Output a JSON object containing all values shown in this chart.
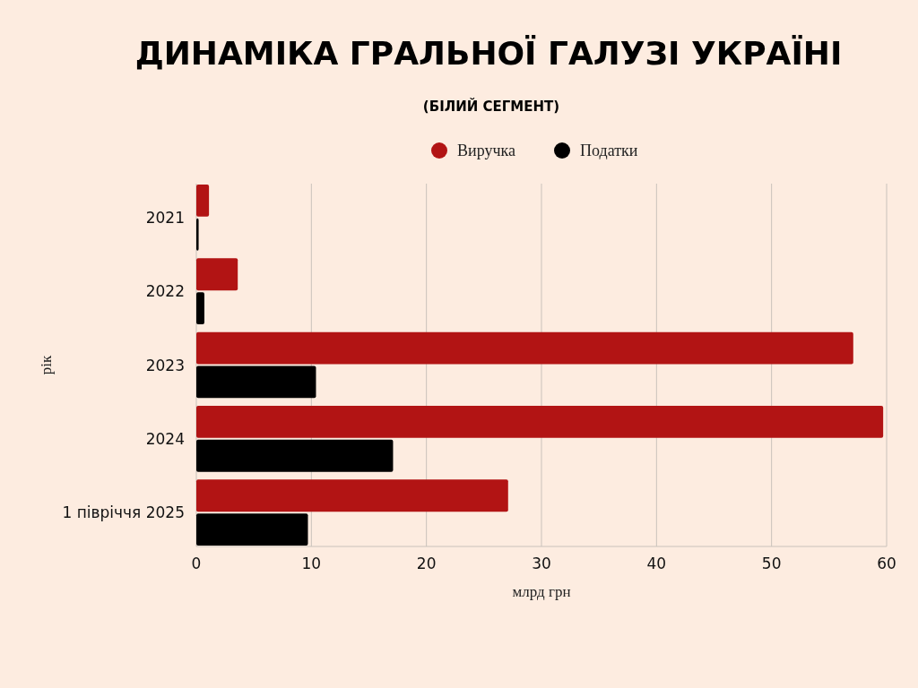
{
  "chart_data": {
    "type": "bar",
    "orientation": "horizontal",
    "title": "ДИНАМІКА ГРАЛЬНОЇ ГАЛУЗІ УКРАЇНІ",
    "subtitle": "(БІЛИЙ СЕГМЕНТ)",
    "xlabel": "млрд грн",
    "ylabel": "рік",
    "categories": [
      "2021",
      "2022",
      "2023",
      "2024",
      "1 півріччя 2025"
    ],
    "series": [
      {
        "name": "Виручка",
        "color": "#b21414",
        "values": [
          1.1,
          3.6,
          57.1,
          59.7,
          27.1
        ]
      },
      {
        "name": "Податки",
        "color": "#000000",
        "values": [
          0.2,
          0.7,
          10.4,
          17.1,
          9.7
        ]
      }
    ],
    "xlim": [
      0,
      60
    ],
    "xticks": [
      0,
      10,
      20,
      30,
      40,
      50,
      60
    ],
    "grid": "x",
    "legend": "top"
  }
}
